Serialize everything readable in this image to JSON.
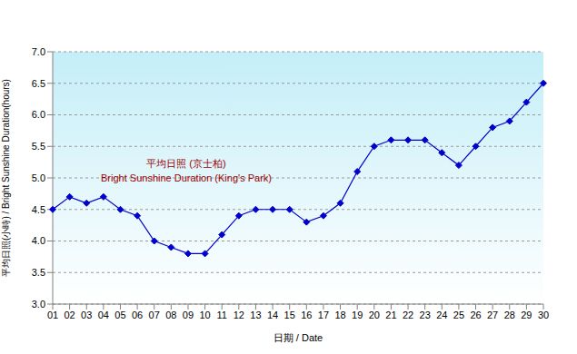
{
  "chart_data": {
    "type": "line",
    "x_label": "日期 / Date",
    "y_label": "平均日照(小時) / Bright Sunshine Duration(hours)",
    "annotations": [
      "平均日照 (京士柏)",
      "Bright Sunshine Duration (King's Park)"
    ],
    "categories": [
      "01",
      "02",
      "03",
      "04",
      "05",
      "06",
      "07",
      "08",
      "09",
      "10",
      "11",
      "12",
      "13",
      "14",
      "15",
      "16",
      "17",
      "18",
      "19",
      "20",
      "21",
      "22",
      "23",
      "24",
      "25",
      "26",
      "27",
      "28",
      "29",
      "30"
    ],
    "values": [
      4.5,
      4.7,
      4.6,
      4.7,
      4.5,
      4.4,
      4.0,
      3.9,
      3.8,
      3.8,
      4.1,
      4.4,
      4.5,
      4.5,
      4.5,
      4.3,
      4.4,
      4.6,
      5.1,
      5.5,
      5.6,
      5.6,
      5.6,
      5.4,
      5.2,
      5.5,
      5.8,
      5.9,
      6.2,
      6.5
    ],
    "color": "#0000cc",
    "marker": "diamond",
    "ylim": [
      3,
      7
    ],
    "yticks": [
      {
        "value": 3,
        "label": "3.0"
      },
      3.5,
      {
        "value": 4,
        "label": "4.0"
      },
      4.5,
      {
        "value": 5,
        "label": "5.0"
      },
      5.5,
      {
        "value": 6,
        "label": "6.0"
      },
      6.5,
      {
        "value": 7,
        "label": "7.0"
      }
    ],
    "grid": true
  }
}
